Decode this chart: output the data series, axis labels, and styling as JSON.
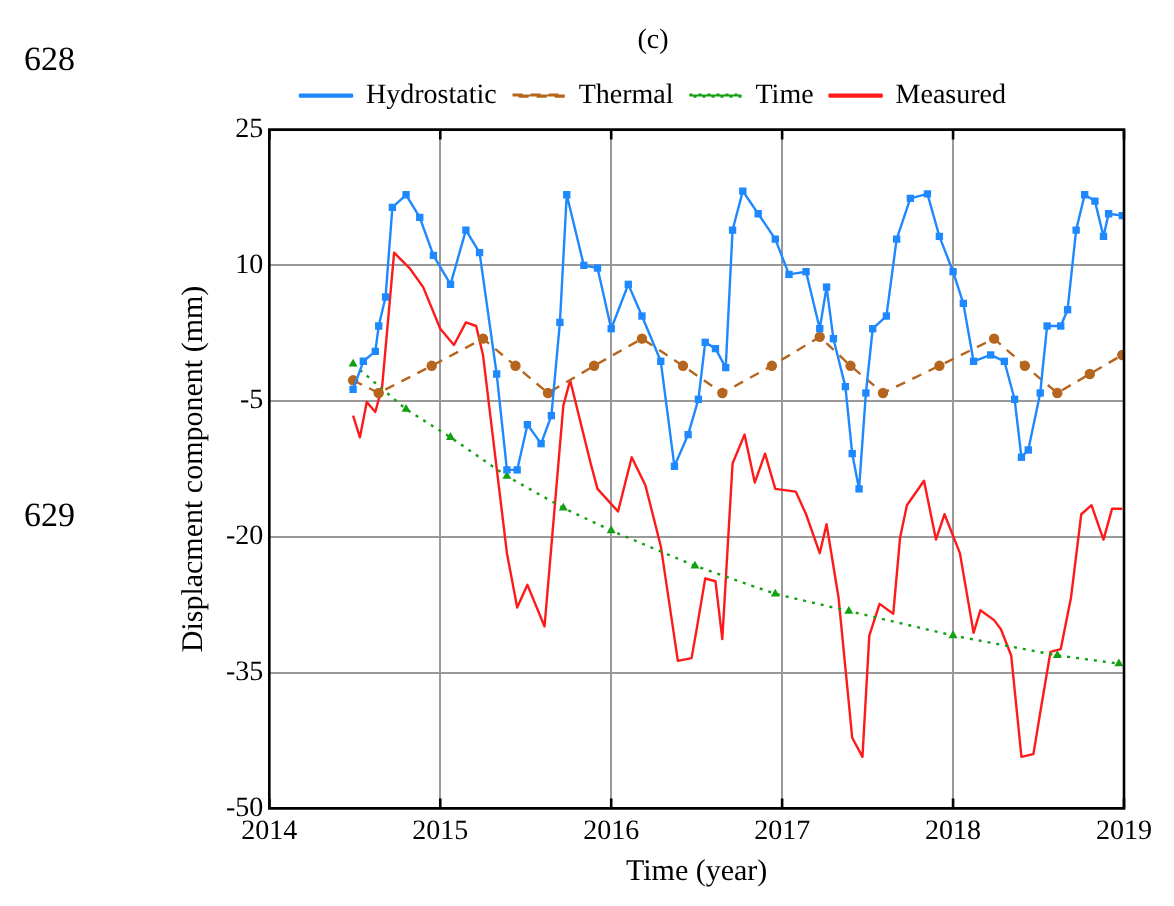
{
  "chart_data": {
    "type": "line",
    "title": "(c)",
    "xlabel": "Time (year)",
    "ylabel": "Displacment component (mm)",
    "annotations": [
      "628",
      "629"
    ],
    "xlim": [
      2014,
      2019
    ],
    "xticks": [
      2014,
      2015,
      2016,
      2017,
      2018,
      2019
    ],
    "ylim": [
      -50,
      25
    ],
    "yticks": [
      -50,
      -35,
      -20,
      -5,
      10,
      25
    ],
    "grid": true,
    "legend": "top",
    "series": [
      {
        "name": "Hydrostatic",
        "color": "#1e88ff",
        "marker": "square",
        "line_style": "solid",
        "x": [
          2014.49,
          2014.55,
          2014.62,
          2014.64,
          2014.68,
          2014.72,
          2014.8,
          2014.88,
          2014.96,
          2015.06,
          2015.15,
          2015.23,
          2015.33,
          2015.39,
          2015.45,
          2015.51,
          2015.59,
          2015.65,
          2015.7,
          2015.74,
          2015.84,
          2015.92,
          2016.0,
          2016.1,
          2016.18,
          2016.29,
          2016.37,
          2016.45,
          2016.51,
          2016.55,
          2016.61,
          2016.67,
          2016.71,
          2016.77,
          2016.86,
          2016.96,
          2017.04,
          2017.14,
          2017.22,
          2017.26,
          2017.3,
          2017.37,
          2017.41,
          2017.45,
          2017.49,
          2017.53,
          2017.61,
          2017.67,
          2017.75,
          2017.85,
          2017.92,
          2018.0,
          2018.06,
          2018.12,
          2018.22,
          2018.3,
          2018.36,
          2018.4,
          2018.44,
          2018.51,
          2018.55,
          2018.63,
          2018.67,
          2018.72,
          2018.77,
          2018.83,
          2018.88,
          2018.91,
          2018.99
        ],
        "values": [
          -3.7,
          -0.6,
          0.5,
          3.3,
          6.5,
          16.4,
          17.8,
          15.3,
          11.1,
          7.9,
          13.9,
          11.4,
          -2.0,
          -12.6,
          -12.6,
          -7.6,
          -9.7,
          -6.6,
          3.7,
          17.8,
          10.0,
          9.7,
          3.0,
          7.9,
          4.4,
          -0.6,
          -12.2,
          -8.7,
          -4.8,
          1.5,
          0.8,
          -1.3,
          13.9,
          18.2,
          15.7,
          12.9,
          9.0,
          9.3,
          3.0,
          7.6,
          1.9,
          -3.4,
          -10.8,
          -14.7,
          -4.1,
          3.0,
          4.4,
          12.9,
          17.4,
          17.9,
          13.2,
          9.3,
          5.8,
          -0.6,
          0.1,
          -0.6,
          -4.8,
          -11.2,
          -10.4,
          -4.1,
          3.3,
          3.3,
          5.1,
          13.9,
          17.8,
          17.1,
          13.2,
          15.7,
          15.5
        ]
      },
      {
        "name": "Thermal",
        "color": "#b5651d",
        "marker": "circle",
        "line_style": "dashed",
        "x": [
          2014.49,
          2014.64,
          2014.95,
          2015.25,
          2015.44,
          2015.63,
          2015.9,
          2016.18,
          2016.42,
          2016.65,
          2016.94,
          2017.22,
          2017.4,
          2017.59,
          2017.92,
          2018.24,
          2018.42,
          2018.61,
          2018.8,
          2018.99
        ],
        "values": [
          -2.7,
          -4.1,
          -1.1,
          1.9,
          -1.1,
          -4.1,
          -1.1,
          1.9,
          -1.1,
          -4.1,
          -1.1,
          2.1,
          -1.1,
          -4.1,
          -1.1,
          1.9,
          -1.1,
          -4.1,
          -2.0,
          0.1
        ]
      },
      {
        "name": "Time",
        "color": "#12a012",
        "marker": "triangle",
        "line_style": "dotted",
        "x": [
          2014.49,
          2014.8,
          2015.06,
          2015.39,
          2015.72,
          2016.0,
          2016.49,
          2016.96,
          2017.39,
          2018.0,
          2018.61,
          2018.97
        ],
        "values": [
          -0.9,
          -5.9,
          -9.0,
          -13.3,
          -16.8,
          -19.3,
          -23.2,
          -26.3,
          -28.2,
          -30.9,
          -33.1,
          -34.0
        ]
      },
      {
        "name": "Measured",
        "color": "#ff1a1a",
        "marker": "none",
        "line_style": "solid",
        "x": [
          2014.49,
          2014.53,
          2014.57,
          2014.62,
          2014.66,
          2014.73,
          2014.82,
          2014.9,
          2015.0,
          2015.08,
          2015.15,
          2015.21,
          2015.25,
          2015.39,
          2015.45,
          2015.51,
          2015.61,
          2015.72,
          2015.76,
          2015.88,
          2015.92,
          2016.04,
          2016.12,
          2016.2,
          2016.29,
          2016.39,
          2016.47,
          2016.5,
          2016.55,
          2016.61,
          2016.65,
          2016.71,
          2016.78,
          2016.84,
          2016.9,
          2016.96,
          2017.08,
          2017.14,
          2017.22,
          2017.26,
          2017.33,
          2017.41,
          2017.47,
          2017.51,
          2017.57,
          2017.65,
          2017.69,
          2017.73,
          2017.83,
          2017.9,
          2017.95,
          2018.04,
          2018.12,
          2018.16,
          2018.24,
          2018.28,
          2018.34,
          2018.4,
          2018.47,
          2018.51,
          2018.57,
          2018.63,
          2018.69,
          2018.75,
          2018.81,
          2018.88,
          2018.93,
          2018.99
        ],
        "values": [
          -6.6,
          -9.0,
          -5.1,
          -6.2,
          -3.4,
          11.4,
          9.7,
          7.6,
          3.0,
          1.2,
          3.7,
          3.3,
          0.1,
          -21.8,
          -27.8,
          -25.3,
          -29.9,
          -5.5,
          -2.7,
          -11.9,
          -14.7,
          -17.2,
          -11.2,
          -14.3,
          -21.0,
          -33.7,
          -33.4,
          -30.2,
          -24.6,
          -24.9,
          -31.3,
          -11.9,
          -8.7,
          -14.0,
          -10.8,
          -14.7,
          -15.0,
          -17.5,
          -21.8,
          -18.6,
          -26.7,
          -42.2,
          -44.3,
          -30.9,
          -27.4,
          -28.5,
          -20.1,
          -16.5,
          -13.8,
          -20.3,
          -17.5,
          -21.8,
          -30.6,
          -28.1,
          -29.2,
          -30.2,
          -33.1,
          -44.3,
          -44.0,
          -39.4,
          -32.7,
          -32.4,
          -26.7,
          -17.5,
          -16.5,
          -20.3,
          -16.9,
          -16.9
        ]
      }
    ]
  }
}
